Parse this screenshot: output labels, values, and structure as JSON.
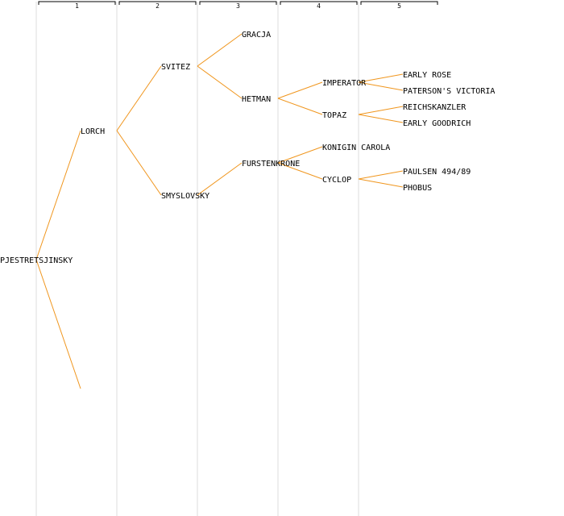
{
  "colors": {
    "edge": "#f0961e",
    "column_line": "#e8e8e8",
    "header_line": "#000000",
    "text": "#000000"
  },
  "columns": [
    "1",
    "2",
    "3",
    "4",
    "5"
  ],
  "pedigree": {
    "name": "PJESTRETSJINSKY",
    "parents": [
      {
        "name": "LORCH",
        "parents": [
          {
            "name": "SVITEZ",
            "parents": [
              {
                "name": "GRACJA"
              },
              {
                "name": "HETMAN",
                "parents": [
                  {
                    "name": "IMPERATOR",
                    "parents": [
                      {
                        "name": "EARLY ROSE"
                      },
                      {
                        "name": "PATERSON'S VICTORIA"
                      }
                    ]
                  },
                  {
                    "name": "TOPAZ",
                    "parents": [
                      {
                        "name": "REICHSKANZLER"
                      },
                      {
                        "name": "EARLY GOODRICH"
                      }
                    ]
                  }
                ]
              }
            ]
          },
          {
            "name": "SMYSLOVSKY",
            "parents": [
              {
                "name": "FURSTENKRONE",
                "parents": [
                  {
                    "name": "KONIGIN CAROLA"
                  },
                  {
                    "name": "CYCLOP",
                    "parents": [
                      {
                        "name": "PAULSEN 494/89"
                      },
                      {
                        "name": "PHOBUS"
                      }
                    ]
                  }
                ]
              }
            ]
          }
        ]
      },
      {
        "name": ""
      }
    ]
  }
}
